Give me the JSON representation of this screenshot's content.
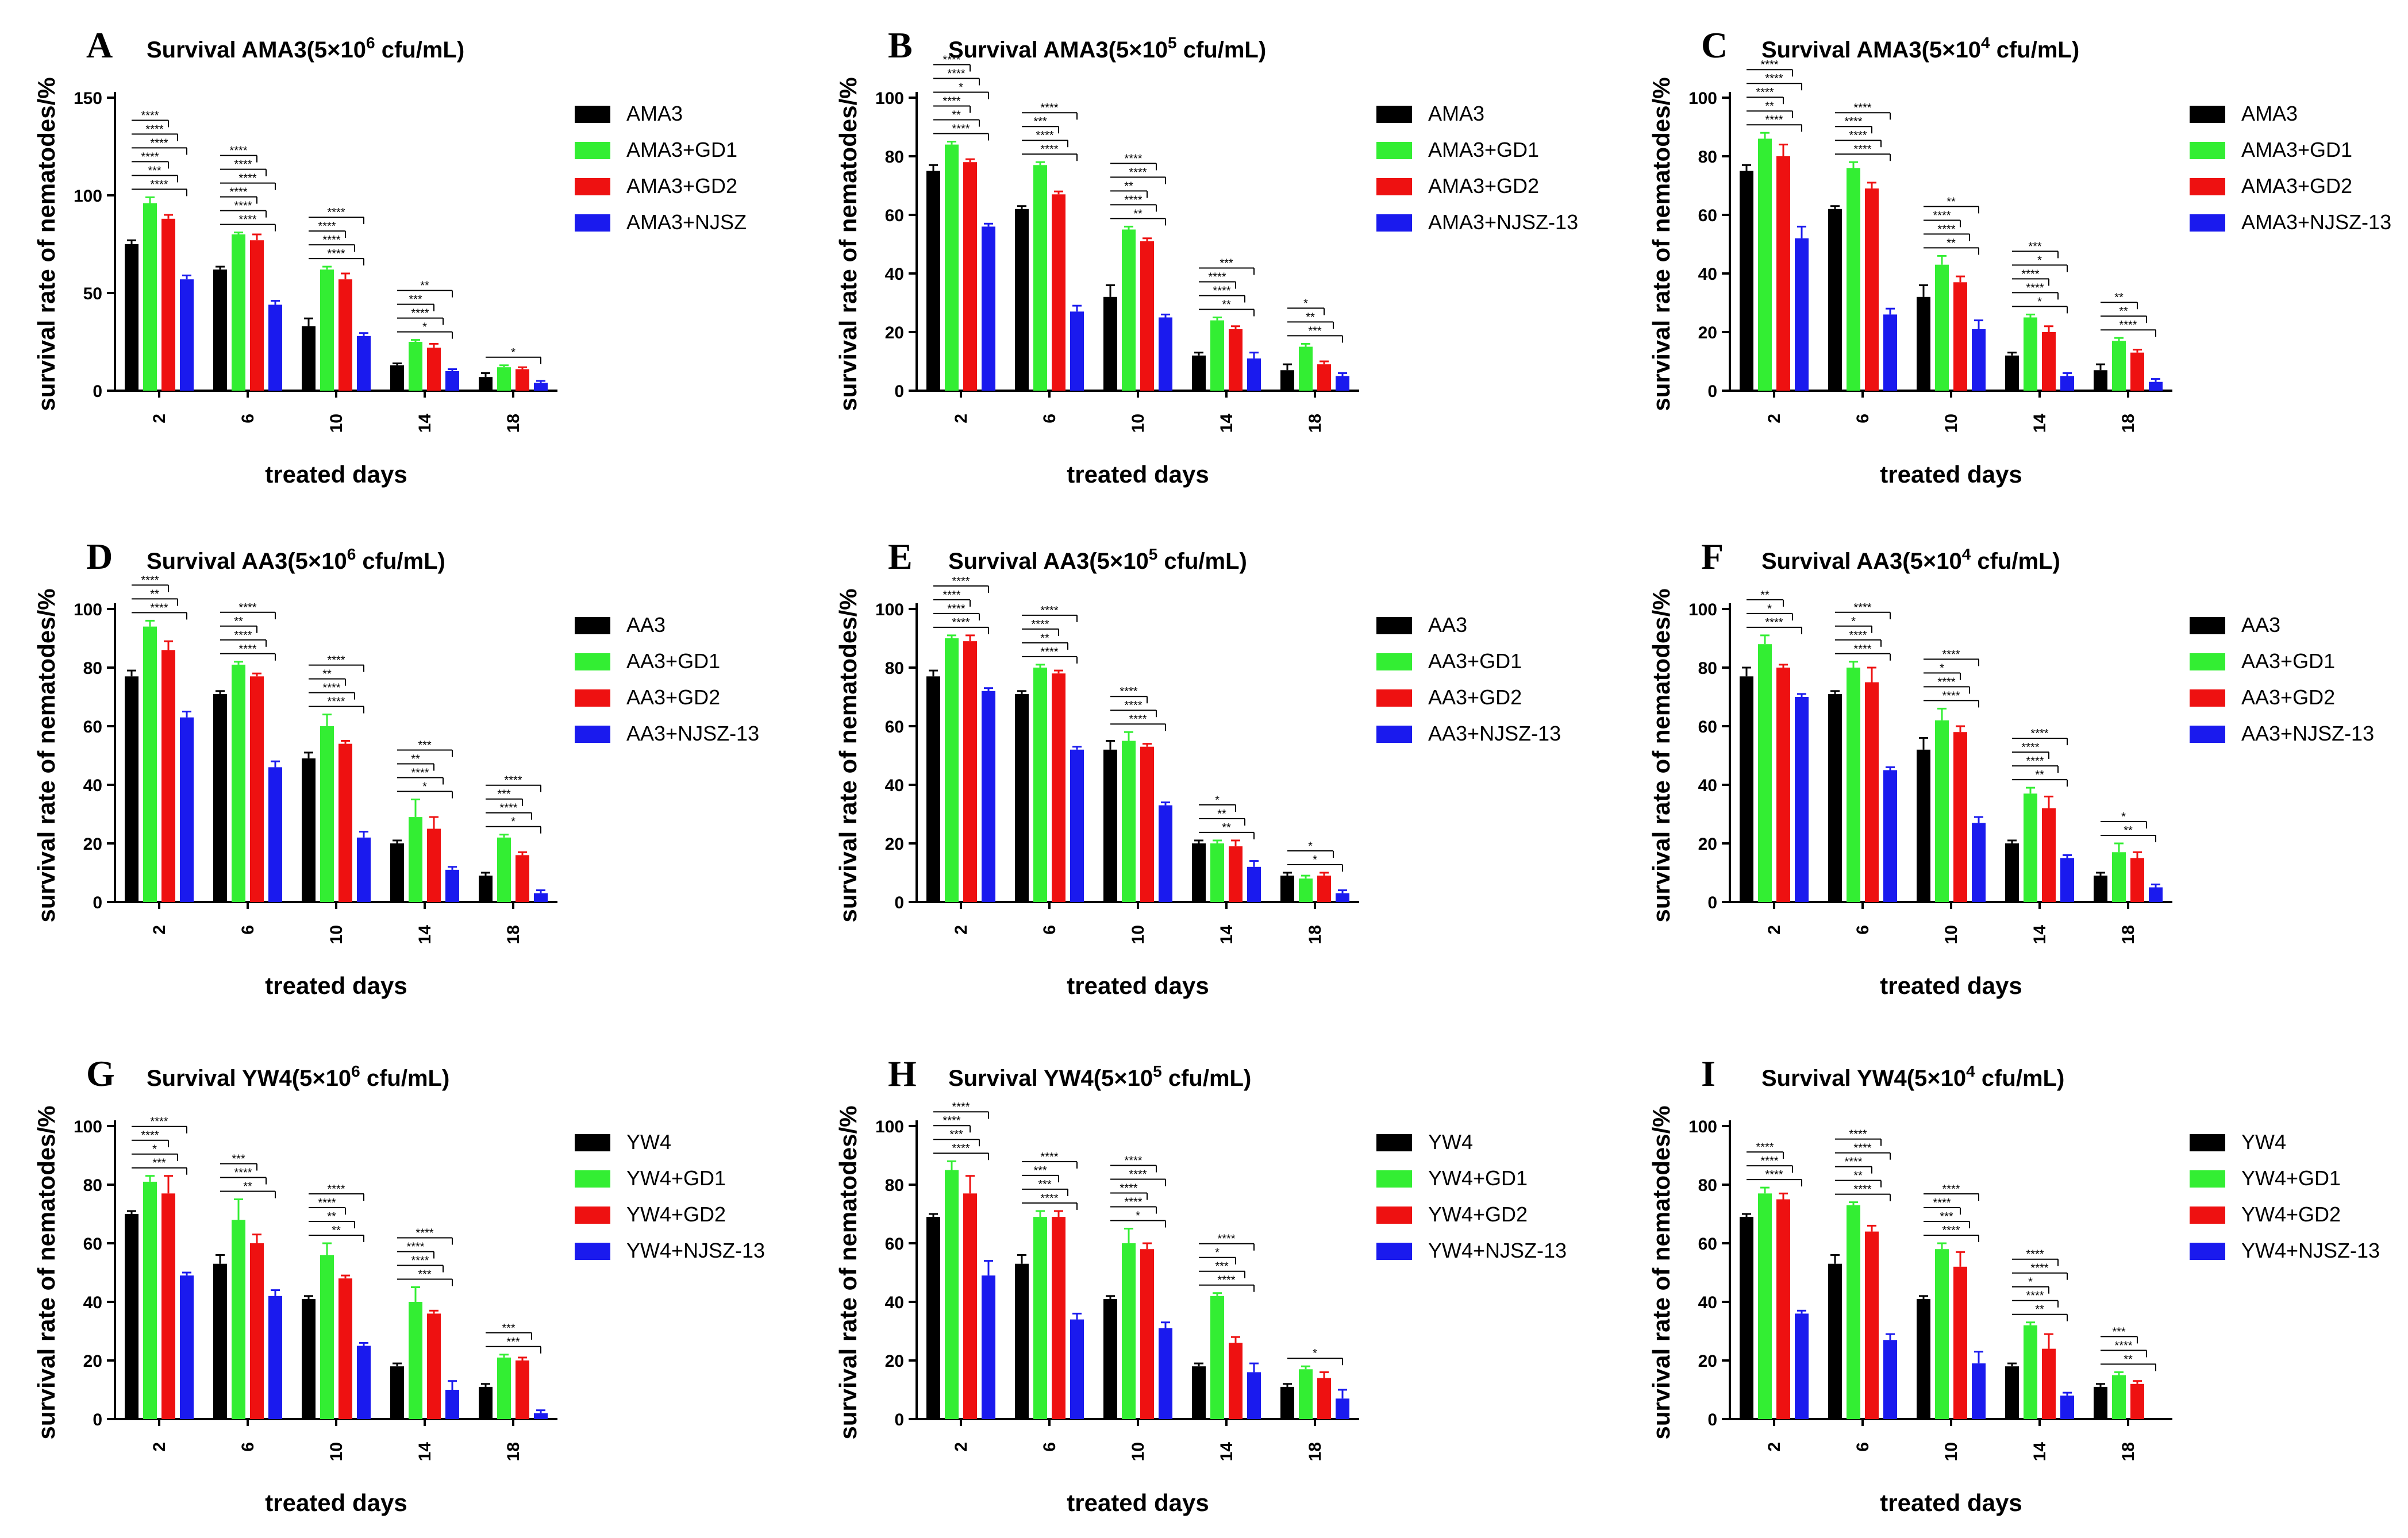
{
  "figure": {
    "xlabel": "treated days",
    "ylabel": "survival rate of nematodes/%",
    "colors": {
      "control": "#000000",
      "gd1": "#33ee33",
      "gd2": "#ee1111",
      "njsz": "#1a1aee"
    }
  },
  "chart_data": [
    {
      "letter": "A",
      "type": "bar",
      "title": {
        "prefix": "Survival AMA3(5×10",
        "exp": "6",
        "suffix": " cfu/mL)"
      },
      "xlabel": "treated days",
      "ylabel": "survival rate of nematodes/%",
      "ylim": [
        0,
        150
      ],
      "yticks": [
        0,
        50,
        100,
        150
      ],
      "categories": [
        "2",
        "6",
        "10",
        "14",
        "18"
      ],
      "series": [
        {
          "name": "AMA3",
          "color": "#000000",
          "values": [
            75,
            62,
            33,
            13,
            7
          ],
          "errors": [
            2,
            1.5,
            4,
            1,
            2
          ]
        },
        {
          "name": "AMA3+GD1",
          "color": "#33ee33",
          "values": [
            96,
            80,
            62,
            25,
            12
          ],
          "errors": [
            3,
            1,
            1.5,
            1,
            1
          ]
        },
        {
          "name": "AMA3+GD2",
          "color": "#ee1111",
          "values": [
            88,
            77,
            57,
            22,
            11
          ],
          "errors": [
            2,
            3,
            3,
            2,
            1
          ]
        },
        {
          "name": "AMA3+NJSZ",
          "color": "#1a1aee",
          "values": [
            57,
            44,
            28,
            10,
            4
          ],
          "errors": [
            2,
            2,
            1.5,
            1,
            1
          ]
        }
      ],
      "sig": [
        [
          "****",
          "***",
          "****",
          "****",
          "****",
          "****"
        ],
        [
          "****",
          "****",
          "****",
          "****",
          "****",
          "****"
        ],
        [
          "****",
          "****",
          "****",
          "****"
        ],
        [
          "*",
          "****",
          "***",
          "**"
        ],
        [
          "*"
        ]
      ]
    },
    {
      "letter": "B",
      "type": "bar",
      "title": {
        "prefix": "Survival AMA3(5×10",
        "exp": "5",
        "suffix": " cfu/mL)"
      },
      "xlabel": "treated days",
      "ylabel": "survival rate of nematodes/%",
      "ylim": [
        0,
        100
      ],
      "yticks": [
        0,
        20,
        40,
        60,
        80,
        100
      ],
      "categories": [
        "2",
        "6",
        "10",
        "14",
        "18"
      ],
      "series": [
        {
          "name": "AMA3",
          "color": "#000000",
          "values": [
            75,
            62,
            32,
            12,
            7
          ],
          "errors": [
            2,
            1,
            4,
            1,
            2
          ]
        },
        {
          "name": "AMA3+GD1",
          "color": "#33ee33",
          "values": [
            84,
            77,
            55,
            24,
            15
          ],
          "errors": [
            1,
            1,
            1,
            1,
            1
          ]
        },
        {
          "name": "AMA3+GD2",
          "color": "#ee1111",
          "values": [
            78,
            67,
            51,
            21,
            9
          ],
          "errors": [
            1,
            1,
            1,
            1,
            1
          ]
        },
        {
          "name": "AMA3+NJSZ-13",
          "color": "#1a1aee",
          "values": [
            56,
            27,
            25,
            11,
            5
          ],
          "errors": [
            1,
            2,
            1,
            2,
            1
          ]
        }
      ],
      "sig": [
        [
          "****",
          "**",
          "****",
          "*",
          "****",
          "****"
        ],
        [
          "****",
          "****",
          "***",
          "****"
        ],
        [
          "**",
          "****",
          "**",
          "****",
          "****"
        ],
        [
          "**",
          "****",
          "****",
          "***"
        ],
        [
          "***",
          "**",
          "*"
        ]
      ]
    },
    {
      "letter": "C",
      "type": "bar",
      "title": {
        "prefix": "Survival AMA3(5×10",
        "exp": "4",
        "suffix": " cfu/mL)"
      },
      "xlabel": "treated days",
      "ylabel": "survival rate of nematodes/%",
      "ylim": [
        0,
        100
      ],
      "yticks": [
        0,
        20,
        40,
        60,
        80,
        100
      ],
      "categories": [
        "2",
        "6",
        "10",
        "14",
        "18"
      ],
      "series": [
        {
          "name": "AMA3",
          "color": "#000000",
          "values": [
            75,
            62,
            32,
            12,
            7
          ],
          "errors": [
            2,
            1,
            4,
            1,
            2
          ]
        },
        {
          "name": "AMA3+GD1",
          "color": "#33ee33",
          "values": [
            86,
            76,
            43,
            25,
            17
          ],
          "errors": [
            2,
            2,
            3,
            1,
            1
          ]
        },
        {
          "name": "AMA3+GD2",
          "color": "#ee1111",
          "values": [
            80,
            69,
            37,
            20,
            13
          ],
          "errors": [
            4,
            2,
            2,
            2,
            1
          ]
        },
        {
          "name": "AMA3+NJSZ-13",
          "color": "#1a1aee",
          "values": [
            52,
            26,
            21,
            5,
            3
          ],
          "errors": [
            4,
            2,
            3,
            1,
            1
          ]
        }
      ],
      "sig": [
        [
          "****",
          "**",
          "****",
          "****",
          "****"
        ],
        [
          "****",
          "****",
          "****",
          "****"
        ],
        [
          "**",
          "****",
          "****",
          "**"
        ],
        [
          "*",
          "****",
          "****",
          "*",
          "***"
        ],
        [
          "****",
          "**",
          "**"
        ]
      ]
    },
    {
      "letter": "D",
      "type": "bar",
      "title": {
        "prefix": "Survival AA3(5×10",
        "exp": "6",
        "suffix": " cfu/mL)"
      },
      "xlabel": "treated days",
      "ylabel": "survival rate of nematodes/%",
      "ylim": [
        0,
        100
      ],
      "yticks": [
        0,
        20,
        40,
        60,
        80,
        100
      ],
      "categories": [
        "2",
        "6",
        "10",
        "14",
        "18"
      ],
      "series": [
        {
          "name": "AA3",
          "color": "#000000",
          "values": [
            77,
            71,
            49,
            20,
            9
          ],
          "errors": [
            2,
            1,
            2,
            1,
            1
          ]
        },
        {
          "name": "AA3+GD1",
          "color": "#33ee33",
          "values": [
            94,
            81,
            60,
            29,
            22
          ],
          "errors": [
            2,
            1,
            4,
            6,
            1
          ]
        },
        {
          "name": "AA3+GD2",
          "color": "#ee1111",
          "values": [
            86,
            77,
            54,
            25,
            16
          ],
          "errors": [
            3,
            1,
            1,
            4,
            1
          ]
        },
        {
          "name": "AA3+NJSZ-13",
          "color": "#1a1aee",
          "values": [
            63,
            46,
            22,
            11,
            3
          ],
          "errors": [
            2,
            2,
            2,
            1,
            1
          ]
        }
      ],
      "sig": [
        [
          "****",
          "**",
          "****",
          "*",
          "****",
          "****"
        ],
        [
          "****",
          "****",
          "**",
          "****"
        ],
        [
          "****",
          "****",
          "**",
          "****"
        ],
        [
          "*",
          "****",
          "**",
          "***"
        ],
        [
          "*",
          "****",
          "***",
          "****"
        ]
      ]
    },
    {
      "letter": "E",
      "type": "bar",
      "title": {
        "prefix": "Survival AA3(5×10",
        "exp": "5",
        "suffix": " cfu/mL)"
      },
      "xlabel": "treated days",
      "ylabel": "survival rate of nematodes/%",
      "ylim": [
        0,
        100
      ],
      "yticks": [
        0,
        20,
        40,
        60,
        80,
        100
      ],
      "categories": [
        "2",
        "6",
        "10",
        "14",
        "18"
      ],
      "series": [
        {
          "name": "AA3",
          "color": "#000000",
          "values": [
            77,
            71,
            52,
            20,
            9
          ],
          "errors": [
            2,
            1,
            3,
            1,
            1
          ]
        },
        {
          "name": "AA3+GD1",
          "color": "#33ee33",
          "values": [
            90,
            80,
            55,
            20,
            8
          ],
          "errors": [
            1,
            1,
            3,
            1,
            1
          ]
        },
        {
          "name": "AA3+GD2",
          "color": "#ee1111",
          "values": [
            89,
            78,
            53,
            19,
            9
          ],
          "errors": [
            2,
            1,
            1,
            2,
            1
          ]
        },
        {
          "name": "AA3+NJSZ-13",
          "color": "#1a1aee",
          "values": [
            72,
            52,
            33,
            12,
            3
          ],
          "errors": [
            1,
            1,
            1,
            2,
            1
          ]
        }
      ],
      "sig": [
        [
          "****",
          "****",
          "****",
          "****"
        ],
        [
          "****",
          "**",
          "****",
          "****"
        ],
        [
          "****",
          "****",
          "****"
        ],
        [
          "**",
          "**",
          "*"
        ],
        [
          "*",
          "*"
        ]
      ]
    },
    {
      "letter": "F",
      "type": "bar",
      "title": {
        "prefix": "Survival AA3(5×10",
        "exp": "4",
        "suffix": " cfu/mL)"
      },
      "xlabel": "treated days",
      "ylabel": "survival rate of nematodes/%",
      "ylim": [
        0,
        100
      ],
      "yticks": [
        0,
        20,
        40,
        60,
        80,
        100
      ],
      "categories": [
        "2",
        "6",
        "10",
        "14",
        "18"
      ],
      "series": [
        {
          "name": "AA3",
          "color": "#000000",
          "values": [
            77,
            71,
            52,
            20,
            9
          ],
          "errors": [
            3,
            1,
            4,
            1,
            1
          ]
        },
        {
          "name": "AA3+GD1",
          "color": "#33ee33",
          "values": [
            88,
            80,
            62,
            37,
            17
          ],
          "errors": [
            3,
            2,
            4,
            2,
            3
          ]
        },
        {
          "name": "AA3+GD2",
          "color": "#ee1111",
          "values": [
            80,
            75,
            58,
            32,
            15
          ],
          "errors": [
            1,
            5,
            2,
            4,
            2
          ]
        },
        {
          "name": "AA3+NJSZ-13",
          "color": "#1a1aee",
          "values": [
            70,
            45,
            27,
            15,
            5
          ],
          "errors": [
            1,
            1,
            2,
            1,
            1
          ]
        }
      ],
      "sig": [
        [
          "****",
          "*",
          "**"
        ],
        [
          "****",
          "****",
          "*",
          "****"
        ],
        [
          "****",
          "****",
          "*",
          "****"
        ],
        [
          "**",
          "****",
          "****",
          "****"
        ],
        [
          "**",
          "*"
        ]
      ]
    },
    {
      "letter": "G",
      "type": "bar",
      "title": {
        "prefix": "Survival YW4(5×10",
        "exp": "6",
        "suffix": " cfu/mL)"
      },
      "xlabel": "treated days",
      "ylabel": "survival rate of nematodes/%",
      "ylim": [
        0,
        100
      ],
      "yticks": [
        0,
        20,
        40,
        60,
        80,
        100
      ],
      "categories": [
        "2",
        "6",
        "10",
        "14",
        "18"
      ],
      "series": [
        {
          "name": "YW4",
          "color": "#000000",
          "values": [
            70,
            53,
            41,
            18,
            11
          ],
          "errors": [
            1,
            3,
            1,
            1,
            1
          ]
        },
        {
          "name": "YW4+GD1",
          "color": "#33ee33",
          "values": [
            81,
            68,
            56,
            40,
            21
          ],
          "errors": [
            2,
            7,
            4,
            5,
            1
          ]
        },
        {
          "name": "YW4+GD2",
          "color": "#ee1111",
          "values": [
            77,
            60,
            48,
            36,
            20
          ],
          "errors": [
            6,
            3,
            1,
            1,
            1
          ]
        },
        {
          "name": "YW4+NJSZ-13",
          "color": "#1a1aee",
          "values": [
            49,
            42,
            25,
            10,
            2
          ],
          "errors": [
            1,
            2,
            1,
            3,
            1
          ]
        }
      ],
      "sig": [
        [
          "***",
          "*",
          "****",
          "****"
        ],
        [
          "**",
          "****",
          "***"
        ],
        [
          "**",
          "**",
          "****",
          "****"
        ],
        [
          "***",
          "****",
          "****",
          "****"
        ],
        [
          "***",
          "***"
        ]
      ]
    },
    {
      "letter": "H",
      "type": "bar",
      "title": {
        "prefix": "Survival YW4(5×10",
        "exp": "5",
        "suffix": " cfu/mL)"
      },
      "xlabel": "treated days",
      "ylabel": "survival rate of nematodes/%",
      "ylim": [
        0,
        100
      ],
      "yticks": [
        0,
        20,
        40,
        60,
        80,
        100
      ],
      "categories": [
        "2",
        "6",
        "10",
        "14",
        "18"
      ],
      "series": [
        {
          "name": "YW4",
          "color": "#000000",
          "values": [
            69,
            53,
            41,
            18,
            11
          ],
          "errors": [
            1,
            3,
            1,
            1,
            1
          ]
        },
        {
          "name": "YW4+GD1",
          "color": "#33ee33",
          "values": [
            85,
            69,
            60,
            42,
            17
          ],
          "errors": [
            3,
            2,
            5,
            1,
            1
          ]
        },
        {
          "name": "YW4+GD2",
          "color": "#ee1111",
          "values": [
            77,
            69,
            58,
            26,
            14
          ],
          "errors": [
            6,
            2,
            2,
            2,
            2
          ]
        },
        {
          "name": "YW4+NJSZ-13",
          "color": "#1a1aee",
          "values": [
            49,
            34,
            31,
            16,
            7
          ],
          "errors": [
            5,
            2,
            2,
            3,
            3
          ]
        }
      ],
      "sig": [
        [
          "****",
          "***",
          "****",
          "****"
        ],
        [
          "****",
          "***",
          "***",
          "****"
        ],
        [
          "*",
          "****",
          "****",
          "****",
          "****"
        ],
        [
          "****",
          "***",
          "*",
          "****"
        ],
        [
          "*"
        ]
      ]
    },
    {
      "letter": "I",
      "type": "bar",
      "title": {
        "prefix": "Survival YW4(5×10",
        "exp": "4",
        "suffix": " cfu/mL)"
      },
      "xlabel": "treated days",
      "ylabel": "survival rate of nematodes/%",
      "ylim": [
        0,
        100
      ],
      "yticks": [
        0,
        20,
        40,
        60,
        80,
        100
      ],
      "categories": [
        "2",
        "6",
        "10",
        "14",
        "18"
      ],
      "series": [
        {
          "name": "YW4",
          "color": "#000000",
          "values": [
            69,
            53,
            41,
            18,
            11
          ],
          "errors": [
            1,
            3,
            1,
            1,
            1
          ]
        },
        {
          "name": "YW4+GD1",
          "color": "#33ee33",
          "values": [
            77,
            73,
            58,
            32,
            15
          ],
          "errors": [
            2,
            1,
            2,
            1,
            1
          ]
        },
        {
          "name": "YW4+GD2",
          "color": "#ee1111",
          "values": [
            75,
            64,
            52,
            24,
            12
          ],
          "errors": [
            2,
            2,
            5,
            5,
            1
          ]
        },
        {
          "name": "YW4+NJSZ-13",
          "color": "#1a1aee",
          "values": [
            36,
            27,
            19,
            8,
            0
          ],
          "errors": [
            1,
            2,
            4,
            1,
            0
          ]
        }
      ],
      "sig": [
        [
          "****",
          "****",
          "****"
        ],
        [
          "****",
          "**",
          "****",
          "****",
          "****"
        ],
        [
          "****",
          "***",
          "****",
          "****"
        ],
        [
          "**",
          "****",
          "*",
          "****",
          "****"
        ],
        [
          "**",
          "****",
          "***"
        ]
      ]
    }
  ]
}
